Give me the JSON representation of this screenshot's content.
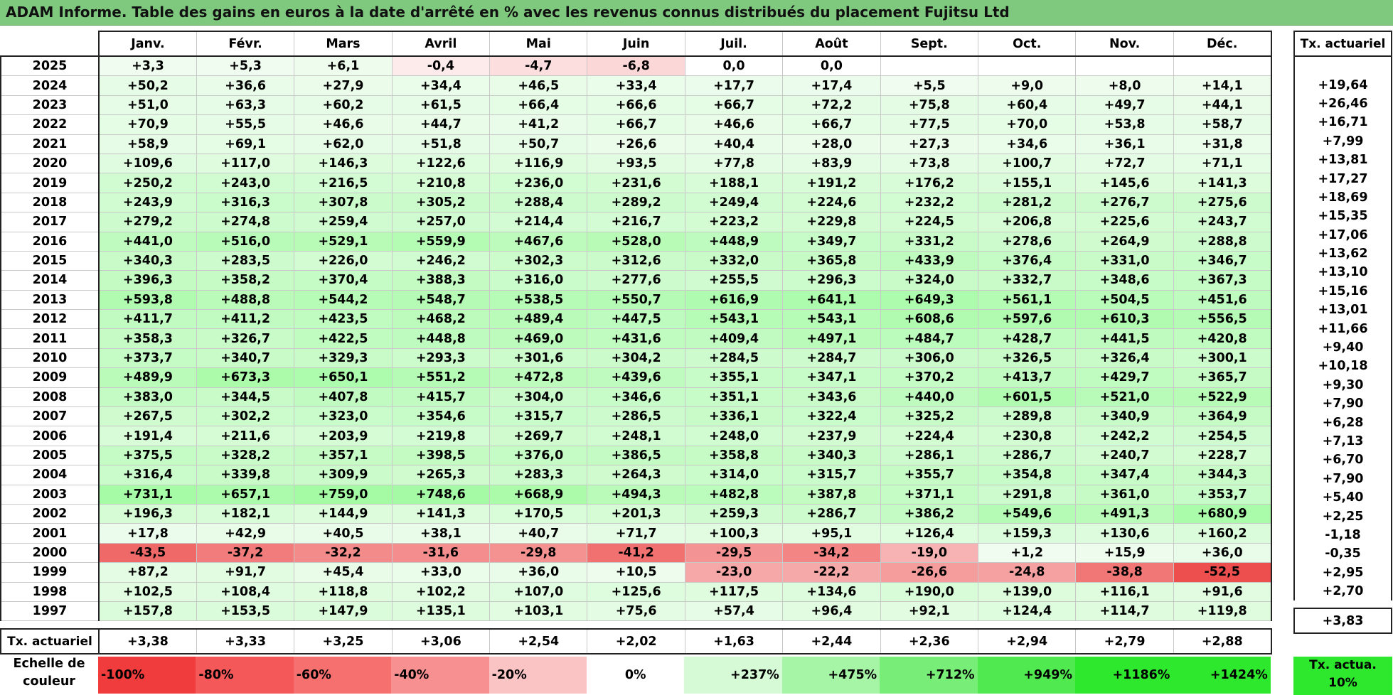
{
  "title": "ADAM Informe. Table des gains en euros à la date d'arrêté en % avec les revenus connus distribués du placement Fujitsu Ltd",
  "chart_data": {
    "type": "heatmap",
    "title": "ADAM Informe. Table des gains en euros à la date d'arrêté en % avec les revenus connus distribués du placement Fujitsu Ltd",
    "columns": [
      "Janv.",
      "Févr.",
      "Mars",
      "Avril",
      "Mai",
      "Juin",
      "Juil.",
      "Août",
      "Sept.",
      "Oct.",
      "Nov.",
      "Déc."
    ],
    "side_header": "Tx. actuariel",
    "rows": [
      {
        "year": "2025",
        "values": [
          "+3,3",
          "+5,3",
          "+6,1",
          "-0,4",
          "-4,7",
          "-6,8",
          "0,0",
          "0,0",
          "",
          "",
          "",
          ""
        ],
        "rate": ""
      },
      {
        "year": "2024",
        "values": [
          "+50,2",
          "+36,6",
          "+27,9",
          "+34,4",
          "+46,5",
          "+33,4",
          "+17,7",
          "+17,4",
          "+5,5",
          "+9,0",
          "+8,0",
          "+14,1"
        ],
        "rate": "+19,64"
      },
      {
        "year": "2023",
        "values": [
          "+51,0",
          "+63,3",
          "+60,2",
          "+61,5",
          "+66,4",
          "+66,6",
          "+66,7",
          "+72,2",
          "+75,8",
          "+60,4",
          "+49,7",
          "+44,1"
        ],
        "rate": "+26,46"
      },
      {
        "year": "2022",
        "values": [
          "+70,9",
          "+55,5",
          "+46,6",
          "+44,7",
          "+41,2",
          "+66,7",
          "+46,6",
          "+66,7",
          "+77,5",
          "+70,0",
          "+53,8",
          "+58,7"
        ],
        "rate": "+16,71"
      },
      {
        "year": "2021",
        "values": [
          "+58,9",
          "+69,1",
          "+62,0",
          "+51,8",
          "+50,7",
          "+26,6",
          "+40,4",
          "+28,0",
          "+27,3",
          "+34,6",
          "+36,1",
          "+31,8"
        ],
        "rate": "+7,99"
      },
      {
        "year": "2020",
        "values": [
          "+109,6",
          "+117,0",
          "+146,3",
          "+122,6",
          "+116,9",
          "+93,5",
          "+77,8",
          "+83,9",
          "+73,8",
          "+100,7",
          "+72,7",
          "+71,1"
        ],
        "rate": "+13,81"
      },
      {
        "year": "2019",
        "values": [
          "+250,2",
          "+243,0",
          "+216,5",
          "+210,8",
          "+236,0",
          "+231,6",
          "+188,1",
          "+191,2",
          "+176,2",
          "+155,1",
          "+145,6",
          "+141,3"
        ],
        "rate": "+17,27"
      },
      {
        "year": "2018",
        "values": [
          "+243,9",
          "+316,3",
          "+307,8",
          "+305,2",
          "+288,4",
          "+289,2",
          "+249,4",
          "+224,6",
          "+232,2",
          "+281,2",
          "+276,7",
          "+275,6"
        ],
        "rate": "+18,69"
      },
      {
        "year": "2017",
        "values": [
          "+279,2",
          "+274,8",
          "+259,4",
          "+257,0",
          "+214,4",
          "+216,7",
          "+223,2",
          "+229,8",
          "+224,5",
          "+206,8",
          "+225,6",
          "+243,7"
        ],
        "rate": "+15,35"
      },
      {
        "year": "2016",
        "values": [
          "+441,0",
          "+516,0",
          "+529,1",
          "+559,9",
          "+467,6",
          "+528,0",
          "+448,9",
          "+349,7",
          "+331,2",
          "+278,6",
          "+264,9",
          "+288,8"
        ],
        "rate": "+17,06"
      },
      {
        "year": "2015",
        "values": [
          "+340,3",
          "+283,5",
          "+226,0",
          "+246,2",
          "+302,3",
          "+312,6",
          "+332,0",
          "+365,8",
          "+433,9",
          "+376,4",
          "+331,0",
          "+346,7"
        ],
        "rate": "+13,62"
      },
      {
        "year": "2014",
        "values": [
          "+396,3",
          "+358,2",
          "+370,4",
          "+388,3",
          "+316,0",
          "+277,6",
          "+255,5",
          "+296,3",
          "+324,0",
          "+332,7",
          "+348,6",
          "+367,3"
        ],
        "rate": "+13,10"
      },
      {
        "year": "2013",
        "values": [
          "+593,8",
          "+488,8",
          "+544,2",
          "+548,7",
          "+538,5",
          "+550,7",
          "+616,9",
          "+641,1",
          "+649,3",
          "+561,1",
          "+504,5",
          "+451,6"
        ],
        "rate": "+15,16"
      },
      {
        "year": "2012",
        "values": [
          "+411,7",
          "+411,2",
          "+423,5",
          "+468,2",
          "+489,4",
          "+447,5",
          "+543,1",
          "+543,1",
          "+608,6",
          "+597,6",
          "+610,3",
          "+556,5"
        ],
        "rate": "+13,01"
      },
      {
        "year": "2011",
        "values": [
          "+358,3",
          "+326,7",
          "+422,5",
          "+448,8",
          "+469,0",
          "+431,6",
          "+409,4",
          "+497,1",
          "+484,7",
          "+428,7",
          "+441,5",
          "+420,8"
        ],
        "rate": "+11,66"
      },
      {
        "year": "2010",
        "values": [
          "+373,7",
          "+340,7",
          "+329,3",
          "+293,3",
          "+301,6",
          "+304,2",
          "+284,5",
          "+284,7",
          "+306,0",
          "+326,5",
          "+326,4",
          "+300,1"
        ],
        "rate": "+9,40"
      },
      {
        "year": "2009",
        "values": [
          "+489,9",
          "+673,3",
          "+650,1",
          "+551,2",
          "+472,8",
          "+439,6",
          "+355,1",
          "+347,1",
          "+370,2",
          "+413,7",
          "+429,7",
          "+365,7"
        ],
        "rate": "+10,18"
      },
      {
        "year": "2008",
        "values": [
          "+383,0",
          "+344,5",
          "+407,8",
          "+415,7",
          "+304,0",
          "+346,6",
          "+351,1",
          "+343,6",
          "+440,0",
          "+601,5",
          "+521,0",
          "+522,9"
        ],
        "rate": "+9,30"
      },
      {
        "year": "2007",
        "values": [
          "+267,5",
          "+302,2",
          "+323,0",
          "+354,6",
          "+315,7",
          "+286,5",
          "+336,1",
          "+322,4",
          "+325,2",
          "+289,8",
          "+340,9",
          "+364,9"
        ],
        "rate": "+7,90"
      },
      {
        "year": "2006",
        "values": [
          "+191,4",
          "+211,6",
          "+203,9",
          "+219,8",
          "+269,7",
          "+248,1",
          "+248,0",
          "+237,9",
          "+224,4",
          "+230,8",
          "+242,2",
          "+254,5"
        ],
        "rate": "+6,28"
      },
      {
        "year": "2005",
        "values": [
          "+375,5",
          "+328,2",
          "+357,1",
          "+398,5",
          "+376,0",
          "+386,5",
          "+358,8",
          "+340,3",
          "+286,1",
          "+286,7",
          "+240,7",
          "+228,7"
        ],
        "rate": "+7,13"
      },
      {
        "year": "2004",
        "values": [
          "+316,4",
          "+339,8",
          "+309,9",
          "+265,3",
          "+283,3",
          "+264,3",
          "+314,0",
          "+315,7",
          "+355,7",
          "+354,8",
          "+347,4",
          "+344,3"
        ],
        "rate": "+6,70"
      },
      {
        "year": "2003",
        "values": [
          "+731,1",
          "+657,1",
          "+759,0",
          "+748,6",
          "+668,9",
          "+494,3",
          "+482,8",
          "+387,8",
          "+371,1",
          "+291,8",
          "+361,0",
          "+353,7"
        ],
        "rate": "+7,90"
      },
      {
        "year": "2002",
        "values": [
          "+196,3",
          "+182,1",
          "+144,9",
          "+141,3",
          "+170,5",
          "+201,3",
          "+259,3",
          "+286,7",
          "+386,2",
          "+549,6",
          "+491,3",
          "+680,9"
        ],
        "rate": "+5,40"
      },
      {
        "year": "2001",
        "values": [
          "+17,8",
          "+42,9",
          "+40,5",
          "+38,1",
          "+40,7",
          "+71,7",
          "+100,3",
          "+95,1",
          "+126,4",
          "+159,3",
          "+130,6",
          "+160,2"
        ],
        "rate": "+2,25"
      },
      {
        "year": "2000",
        "values": [
          "-43,5",
          "-37,2",
          "-32,2",
          "-31,6",
          "-29,8",
          "-41,2",
          "-29,5",
          "-34,2",
          "-19,0",
          "+1,2",
          "+15,9",
          "+36,0"
        ],
        "rate": "-1,18"
      },
      {
        "year": "1999",
        "values": [
          "+87,2",
          "+91,7",
          "+45,4",
          "+33,0",
          "+36,0",
          "+10,5",
          "-23,0",
          "-22,2",
          "-26,6",
          "-24,8",
          "-38,8",
          "-52,5"
        ],
        "rate": "-0,35"
      },
      {
        "year": "1998",
        "values": [
          "+102,5",
          "+108,4",
          "+118,8",
          "+102,2",
          "+107,0",
          "+125,6",
          "+117,5",
          "+134,6",
          "+190,0",
          "+139,0",
          "+116,1",
          "+91,6"
        ],
        "rate": "+2,95"
      },
      {
        "year": "1997",
        "values": [
          "+157,8",
          "+153,5",
          "+147,9",
          "+135,1",
          "+103,1",
          "+75,6",
          "+57,4",
          "+96,4",
          "+92,1",
          "+124,4",
          "+114,7",
          "+119,8"
        ],
        "rate": "+2,70"
      }
    ],
    "footer": {
      "label": "Tx. actuariel",
      "values": [
        "+3,38",
        "+3,33",
        "+3,25",
        "+3,06",
        "+2,54",
        "+2,02",
        "+1,63",
        "+2,44",
        "+2,36",
        "+2,94",
        "+2,79",
        "+2,88"
      ],
      "rate": "+3,83"
    },
    "scale": {
      "label": "Echelle de couleur",
      "items": [
        "-100%",
        "-80%",
        "-60%",
        "-40%",
        "-20%",
        "0%",
        "+237%",
        "+475%",
        "+712%",
        "+949%",
        "+1186%",
        "+1424%"
      ],
      "colors": [
        "#f03c3c",
        "#f45858",
        "#f67070",
        "#f79090",
        "#fbc4c4",
        "#ffffff",
        "#d6fad6",
        "#a6f4a6",
        "#78ee78",
        "#50ea50",
        "#2ee82e",
        "#2ee82e"
      ],
      "side_label": "Tx. actua. 10%",
      "side_color": "#2ee82e"
    },
    "color_rule": {
      "negative_full_at": -60,
      "positive_full_at": 1424
    }
  }
}
